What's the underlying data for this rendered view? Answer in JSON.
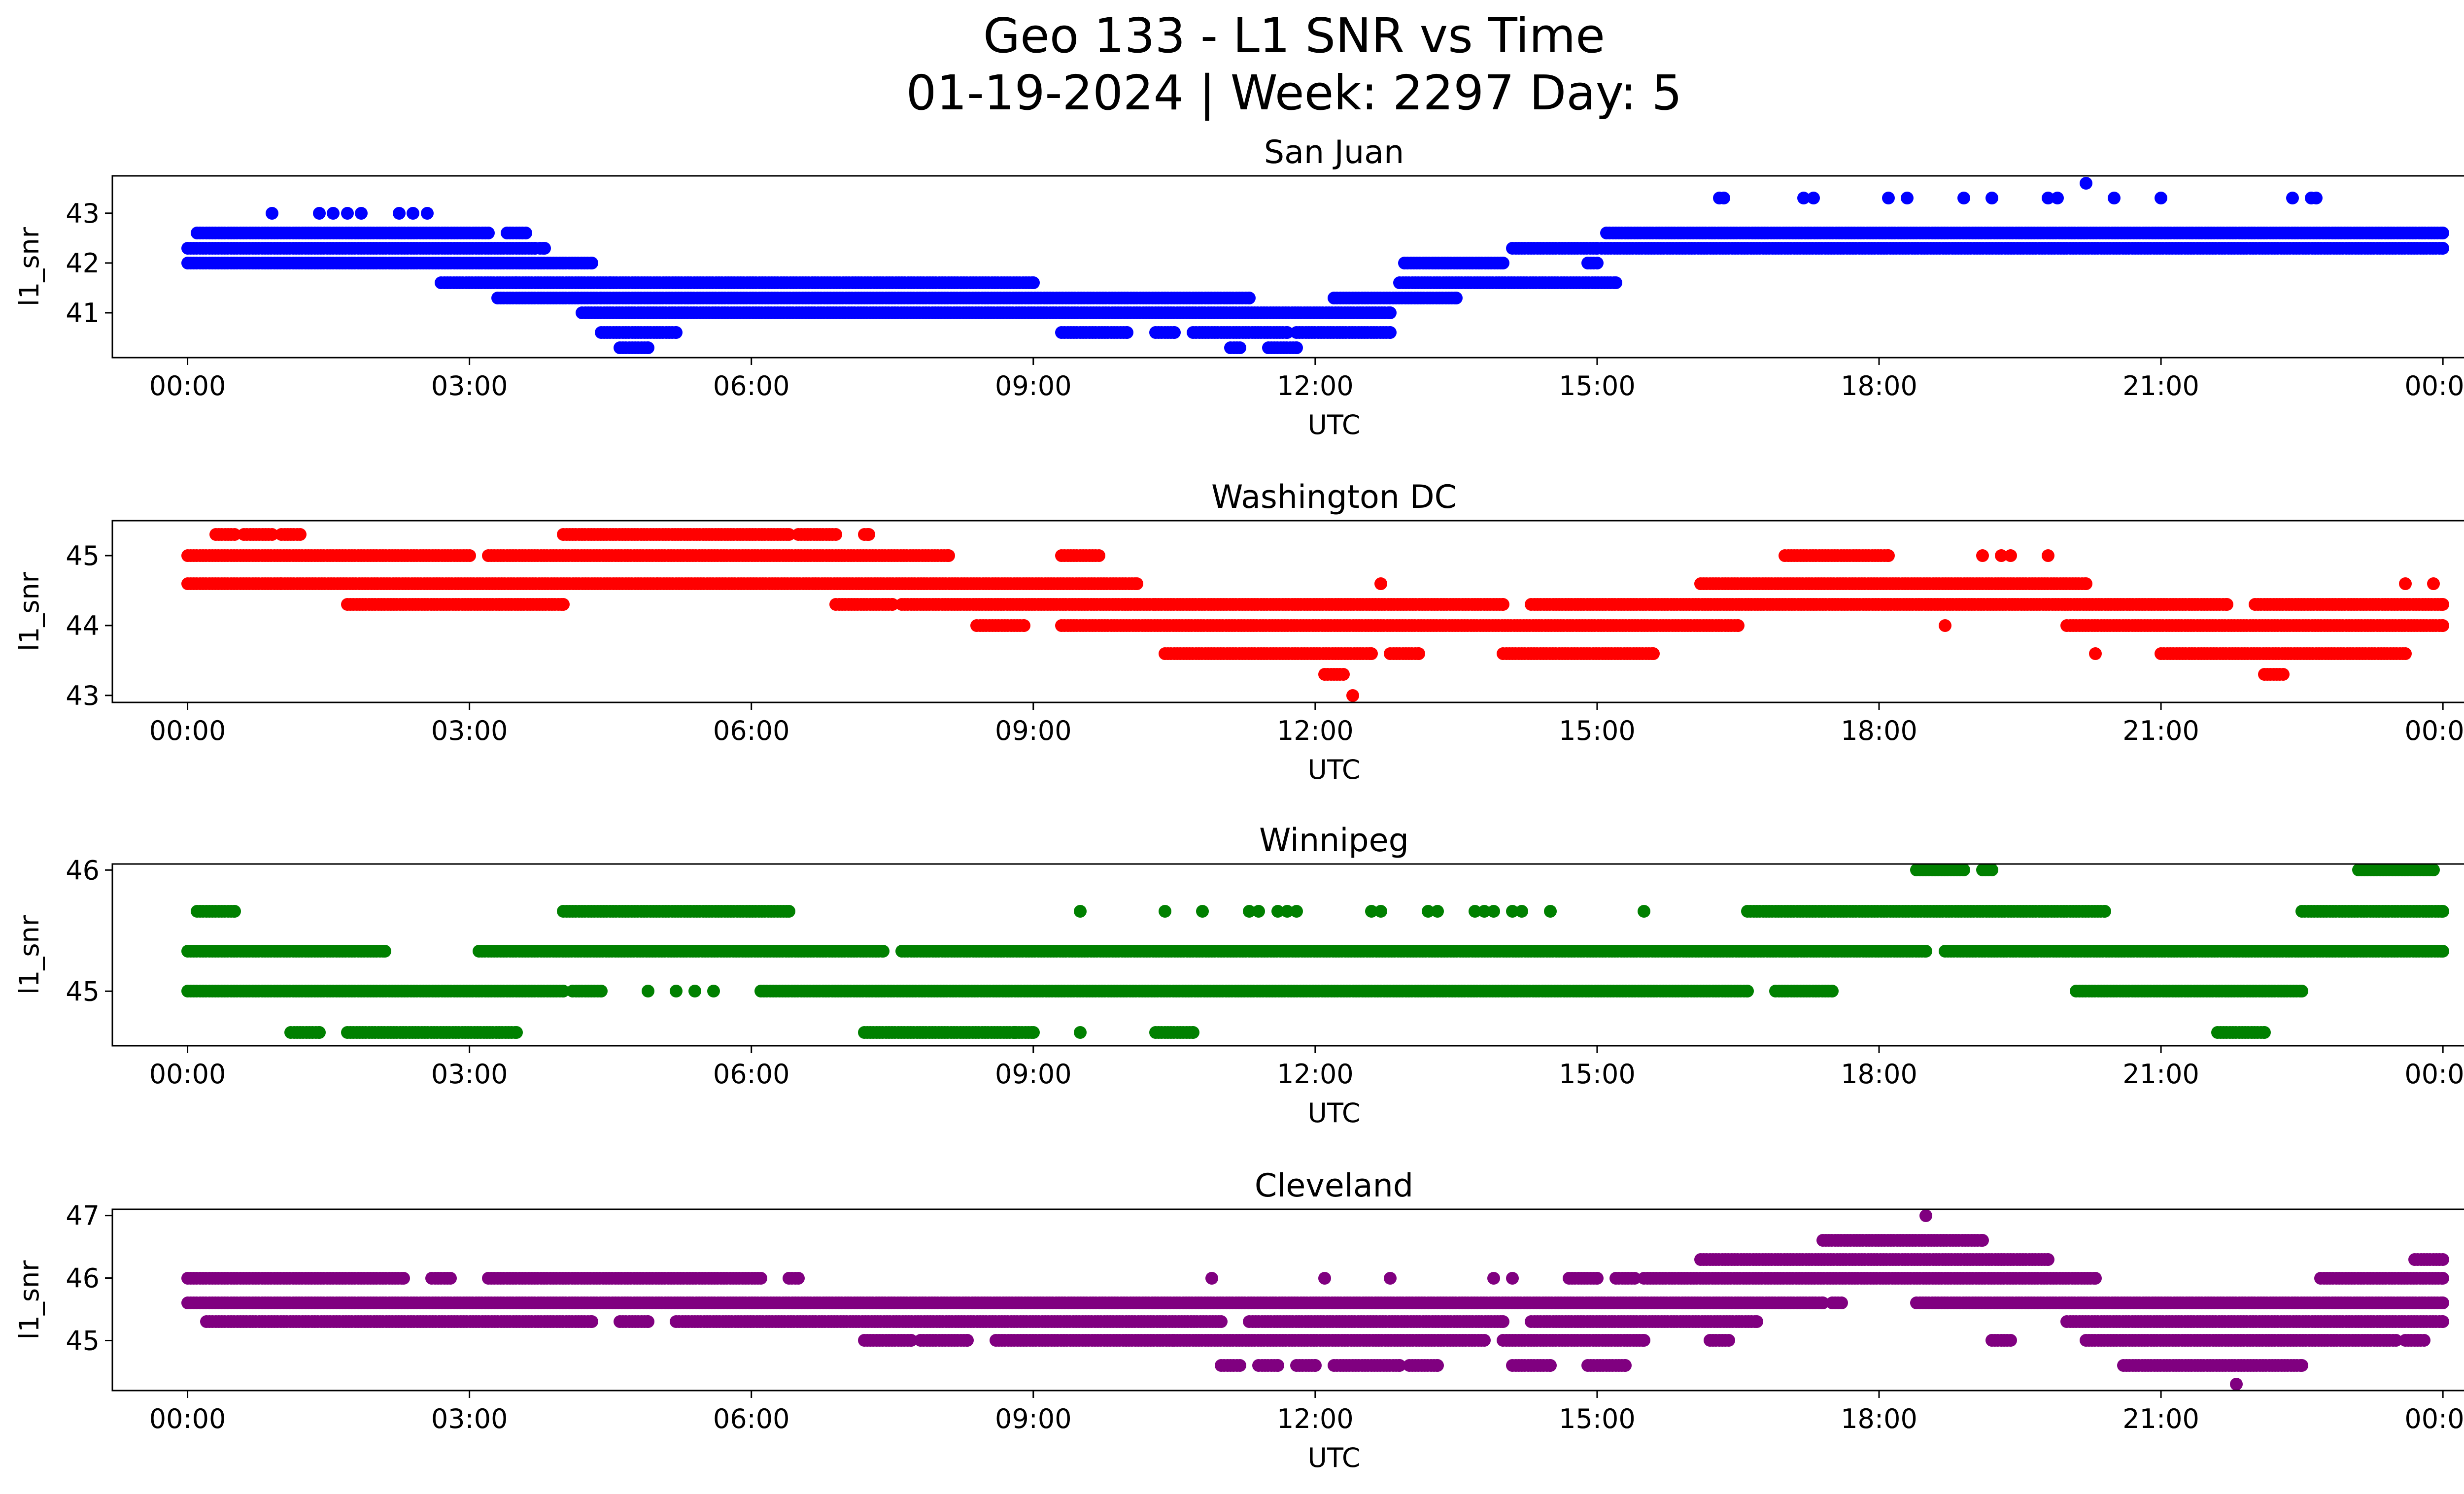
{
  "figure": {
    "title_line1": "Geo 133 - L1 SNR vs Time",
    "title_line2": "01-19-2024 | Week: 2297 Day: 5"
  },
  "chart_data": [
    {
      "type": "scatter",
      "title": "San Juan",
      "xlabel": "UTC",
      "ylabel": "l1_snr",
      "color": "#0000ff",
      "xlim": [
        -0.8,
        25.2
      ],
      "ylim": [
        40.1,
        43.75
      ],
      "x_ticks": [
        0,
        3,
        6,
        9,
        12,
        15,
        18,
        21,
        24
      ],
      "x_tick_labels": [
        "00:00",
        "03:00",
        "06:00",
        "09:00",
        "12:00",
        "15:00",
        "18:00",
        "21:00",
        "00:00"
      ],
      "y_ticks": [
        41,
        42,
        43
      ],
      "y_tick_labels": [
        "41",
        "42",
        "43"
      ],
      "segments": [
        {
          "y": 43.0,
          "x": [
            0.9,
            1.4,
            1.55,
            1.7,
            1.85,
            2.25,
            2.4,
            2.55
          ]
        },
        {
          "y": 42.6,
          "ranges": [
            [
              0.1,
              3.2
            ],
            [
              3.4,
              3.6
            ],
            [
              15.1,
              24.0
            ]
          ]
        },
        {
          "y": 42.3,
          "ranges": [
            [
              0.0,
              3.7
            ],
            [
              3.75,
              3.8
            ],
            [
              14.1,
              15.0
            ],
            [
              15.05,
              24.0
            ]
          ]
        },
        {
          "y": 42.0,
          "ranges": [
            [
              0.0,
              4.3
            ],
            [
              12.95,
              14.0
            ],
            [
              14.9,
              15.0
            ]
          ]
        },
        {
          "y": 41.6,
          "ranges": [
            [
              2.7,
              3.5
            ],
            [
              3.5,
              4.5
            ],
            [
              4.5,
              9.0
            ],
            [
              12.9,
              15.2
            ]
          ]
        },
        {
          "y": 41.3,
          "ranges": [
            [
              3.3,
              4.4
            ],
            [
              4.4,
              7.2
            ],
            [
              7.2,
              11.3
            ],
            [
              12.2,
              13.5
            ]
          ]
        },
        {
          "y": 41.0,
          "ranges": [
            [
              4.2,
              7.0
            ],
            [
              7.0,
              12.8
            ]
          ]
        },
        {
          "y": 40.6,
          "ranges": [
            [
              4.4,
              5.2
            ],
            [
              9.3,
              10.0
            ],
            [
              10.3,
              10.5
            ],
            [
              10.7,
              11.7
            ],
            [
              11.8,
              12.8
            ]
          ]
        },
        {
          "y": 40.3,
          "ranges": [
            [
              4.6,
              4.9
            ],
            [
              11.1,
              11.2
            ],
            [
              11.5,
              11.8
            ]
          ]
        },
        {
          "y": 43.3,
          "x": [
            16.3,
            16.35,
            17.2,
            17.3,
            18.1,
            18.3,
            18.9,
            19.2,
            19.8,
            19.9,
            20.5,
            21.0,
            22.4,
            22.6,
            22.65
          ]
        },
        {
          "y": 43.6,
          "x": [
            20.2
          ]
        }
      ]
    },
    {
      "type": "scatter",
      "title": "Washington DC",
      "xlabel": "UTC",
      "ylabel": "l1_snr",
      "color": "#ff0000",
      "xlim": [
        -0.8,
        25.2
      ],
      "ylim": [
        42.9,
        45.5
      ],
      "x_ticks": [
        0,
        3,
        6,
        9,
        12,
        15,
        18,
        21,
        24
      ],
      "x_tick_labels": [
        "00:00",
        "03:00",
        "06:00",
        "09:00",
        "12:00",
        "15:00",
        "18:00",
        "21:00",
        "00:00"
      ],
      "y_ticks": [
        43,
        44,
        45
      ],
      "y_tick_labels": [
        "43",
        "44",
        "45"
      ],
      "segments": [
        {
          "y": 45.3,
          "ranges": [
            [
              0.3,
              0.5
            ],
            [
              0.6,
              0.9
            ],
            [
              1.0,
              1.2
            ],
            [
              4.0,
              6.4
            ],
            [
              6.5,
              6.9
            ],
            [
              7.2,
              7.25
            ]
          ]
        },
        {
          "y": 45.0,
          "ranges": [
            [
              0.0,
              3.0
            ],
            [
              3.2,
              8.1
            ],
            [
              9.3,
              9.7
            ],
            [
              17.0,
              18.1
            ]
          ]
        },
        {
          "y": 44.6,
          "ranges": [
            [
              0.0,
              1.0
            ],
            [
              1.0,
              5.0
            ],
            [
              5.0,
              10.1
            ],
            [
              16.1,
              20.2
            ]
          ]
        },
        {
          "y": 44.3,
          "ranges": [
            [
              1.7,
              4.0
            ],
            [
              6.9,
              7.5
            ],
            [
              7.6,
              10.3
            ],
            [
              10.3,
              14.0
            ],
            [
              14.3,
              21.7
            ],
            [
              22.0,
              24.0
            ]
          ]
        },
        {
          "y": 44.0,
          "ranges": [
            [
              8.4,
              8.9
            ],
            [
              9.3,
              16.5
            ],
            [
              20.0,
              24.0
            ]
          ]
        },
        {
          "y": 43.6,
          "ranges": [
            [
              10.4,
              12.6
            ],
            [
              12.8,
              13.1
            ],
            [
              14.0,
              15.6
            ],
            [
              21.0,
              23.6
            ]
          ]
        },
        {
          "y": 43.3,
          "ranges": [
            [
              12.1,
              12.3
            ],
            [
              22.1,
              22.3
            ]
          ]
        },
        {
          "y": 43.0,
          "x": [
            12.4
          ]
        },
        {
          "y": 44.6,
          "x": [
            12.7,
            23.6,
            23.9
          ]
        },
        {
          "y": 45.0,
          "x": [
            19.1,
            19.3,
            19.4,
            19.8
          ]
        },
        {
          "y": 44.0,
          "x": [
            18.7,
            8.9
          ]
        },
        {
          "y": 43.6,
          "x": [
            20.3
          ]
        }
      ]
    },
    {
      "type": "scatter",
      "title": "Winnipeg",
      "xlabel": "UTC",
      "ylabel": "l1_snr",
      "color": "#008000",
      "xlim": [
        -0.8,
        25.2
      ],
      "ylim": [
        44.55,
        46.05
      ],
      "x_ticks": [
        0,
        3,
        6,
        9,
        12,
        15,
        18,
        21,
        24
      ],
      "x_tick_labels": [
        "00:00",
        "03:00",
        "06:00",
        "09:00",
        "12:00",
        "15:00",
        "18:00",
        "21:00",
        "00:00"
      ],
      "y_ticks": [
        45,
        46
      ],
      "y_tick_labels": [
        "45",
        "46"
      ],
      "segments": [
        {
          "y": 46.0,
          "ranges": [
            [
              18.4,
              18.9
            ],
            [
              19.1,
              19.2
            ],
            [
              23.1,
              23.9
            ]
          ]
        },
        {
          "y": 45.66,
          "ranges": [
            [
              0.1,
              0.5
            ],
            [
              4.0,
              6.4
            ],
            [
              16.6,
              20.4
            ],
            [
              22.5,
              24.0
            ]
          ]
        },
        {
          "y": 45.33,
          "ranges": [
            [
              0.0,
              2.1
            ],
            [
              3.1,
              7.4
            ],
            [
              7.6,
              18.5
            ],
            [
              18.7,
              24.0
            ]
          ]
        },
        {
          "y": 45.0,
          "ranges": [
            [
              0.0,
              4.0
            ],
            [
              4.1,
              4.4
            ],
            [
              6.1,
              16.6
            ],
            [
              16.9,
              17.5
            ],
            [
              20.1,
              22.5
            ]
          ]
        },
        {
          "y": 44.66,
          "ranges": [
            [
              1.1,
              1.4
            ],
            [
              1.7,
              3.5
            ],
            [
              7.2,
              9.0
            ],
            [
              10.3,
              10.7
            ],
            [
              21.6,
              22.1
            ]
          ]
        },
        {
          "y": 45.66,
          "x": [
            9.5,
            10.4,
            10.8,
            11.3,
            11.4,
            11.6,
            11.7,
            11.8,
            12.6,
            12.7,
            13.2,
            13.3,
            13.7,
            13.8,
            13.9,
            14.1,
            14.2,
            14.5,
            15.5
          ]
        },
        {
          "y": 45.0,
          "x": [
            4.9,
            5.2,
            5.4,
            5.6
          ]
        },
        {
          "y": 44.66,
          "x": [
            8.8,
            9.5
          ]
        }
      ]
    },
    {
      "type": "scatter",
      "title": "Cleveland",
      "xlabel": "UTC",
      "ylabel": "l1_snr",
      "color": "#800080",
      "xlim": [
        -0.8,
        25.2
      ],
      "ylim": [
        44.2,
        47.1
      ],
      "x_ticks": [
        0,
        3,
        6,
        9,
        12,
        15,
        18,
        21,
        24
      ],
      "x_tick_labels": [
        "00:00",
        "03:00",
        "06:00",
        "09:00",
        "12:00",
        "15:00",
        "18:00",
        "21:00",
        "00:00"
      ],
      "y_ticks": [
        45,
        46,
        47
      ],
      "y_tick_labels": [
        "45",
        "46",
        "47"
      ],
      "segments": [
        {
          "y": 47.0,
          "x": [
            18.5
          ]
        },
        {
          "y": 46.6,
          "ranges": [
            [
              17.4,
              19.1
            ]
          ]
        },
        {
          "y": 46.3,
          "ranges": [
            [
              16.1,
              19.8
            ],
            [
              23.7,
              24.0
            ]
          ]
        },
        {
          "y": 46.0,
          "ranges": [
            [
              0.0,
              2.3
            ],
            [
              2.6,
              2.8
            ],
            [
              3.2,
              6.1
            ],
            [
              6.4,
              6.5
            ],
            [
              14.7,
              15.0
            ],
            [
              15.2,
              15.4
            ],
            [
              15.5,
              20.3
            ],
            [
              22.7,
              24.0
            ]
          ]
        },
        {
          "y": 45.6,
          "ranges": [
            [
              0.0,
              17.4
            ],
            [
              17.5,
              17.6
            ],
            [
              18.4,
              24.0
            ]
          ]
        },
        {
          "y": 45.3,
          "ranges": [
            [
              0.2,
              4.3
            ],
            [
              4.6,
              4.9
            ],
            [
              5.2,
              11.0
            ],
            [
              11.3,
              14.0
            ],
            [
              14.3,
              16.7
            ],
            [
              20.0,
              24.0
            ]
          ]
        },
        {
          "y": 45.0,
          "ranges": [
            [
              7.2,
              7.7
            ],
            [
              7.8,
              8.3
            ],
            [
              8.6,
              10.5
            ],
            [
              10.5,
              13.8
            ],
            [
              14.0,
              15.5
            ],
            [
              16.2,
              16.4
            ],
            [
              19.2,
              19.4
            ],
            [
              20.2,
              23.5
            ],
            [
              23.6,
              23.8
            ]
          ]
        },
        {
          "y": 44.6,
          "ranges": [
            [
              11.0,
              11.2
            ],
            [
              11.4,
              11.6
            ],
            [
              11.8,
              12.0
            ],
            [
              12.2,
              12.9
            ],
            [
              13.0,
              13.3
            ],
            [
              14.1,
              14.5
            ],
            [
              14.9,
              15.3
            ],
            [
              20.6,
              22.5
            ]
          ]
        },
        {
          "y": 46.0,
          "x": [
            10.9,
            12.1,
            12.8,
            13.9,
            14.1
          ]
        },
        {
          "y": 44.3,
          "x": [
            21.8
          ]
        }
      ]
    }
  ]
}
